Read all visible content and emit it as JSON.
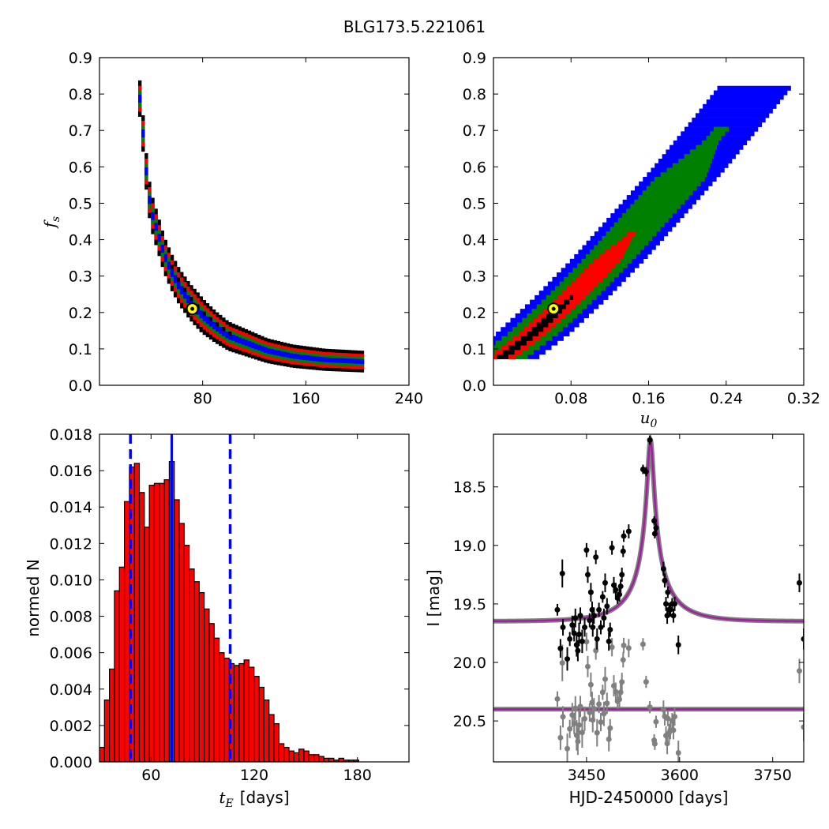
{
  "figure_title": "BLG173.5.221061",
  "chart_data": [
    {
      "id": "fs-vs-tE",
      "type": "heatmap",
      "xlabel": "",
      "ylabel": "f_s",
      "ylabel_main": "f",
      "ylabel_sub": "s",
      "xlim": [
        0,
        240
      ],
      "ylim": [
        0.0,
        0.9
      ],
      "xticks": [
        80,
        160,
        240
      ],
      "xtick_labels": [
        "80",
        "160",
        "240"
      ],
      "yticks": [
        0.0,
        0.1,
        0.2,
        0.3,
        0.4,
        0.5,
        0.6,
        0.7,
        0.8,
        0.9
      ],
      "ytick_labels": [
        "0.0",
        "0.1",
        "0.2",
        "0.3",
        "0.4",
        "0.5",
        "0.6",
        "0.7",
        "0.8",
        "0.9"
      ],
      "levels": [
        "black",
        "red",
        "green",
        "blue"
      ],
      "level_colors": [
        "#000000",
        "#ff0000",
        "#008000",
        "#0000ff"
      ],
      "ridge": [
        [
          30,
          0.85
        ],
        [
          32,
          0.75
        ],
        [
          35,
          0.65
        ],
        [
          37,
          0.55
        ],
        [
          40,
          0.48
        ],
        [
          45,
          0.42
        ],
        [
          50,
          0.36
        ],
        [
          56,
          0.31
        ],
        [
          62,
          0.27
        ],
        [
          70,
          0.23
        ],
        [
          80,
          0.19
        ],
        [
          90,
          0.16
        ],
        [
          100,
          0.135
        ],
        [
          115,
          0.115
        ],
        [
          130,
          0.095
        ],
        [
          150,
          0.08
        ],
        [
          175,
          0.07
        ],
        [
          205,
          0.065
        ]
      ],
      "band_width": [
        0.022,
        0.045,
        0.07,
        0.1
      ],
      "best_fit": [
        72,
        0.21
      ],
      "best_fit_color": "#ffff00"
    },
    {
      "id": "fs-vs-u0",
      "type": "heatmap",
      "xlabel": "u_0",
      "xlabel_main": "u",
      "xlabel_sub": "0",
      "ylabel": "",
      "xlim": [
        0,
        0.32
      ],
      "ylim": [
        0.0,
        0.9
      ],
      "xticks": [
        0.08,
        0.16,
        0.24,
        0.32
      ],
      "xtick_labels": [
        "0.08",
        "0.16",
        "0.24",
        "0.32"
      ],
      "yticks": [
        0.0,
        0.1,
        0.2,
        0.3,
        0.4,
        0.5,
        0.6,
        0.7,
        0.8,
        0.9
      ],
      "ytick_labels": [
        "0.0",
        "0.1",
        "0.2",
        "0.3",
        "0.4",
        "0.5",
        "0.6",
        "0.7",
        "0.8",
        "0.9"
      ],
      "levels": [
        "black",
        "red",
        "green",
        "blue"
      ],
      "level_colors": [
        "#000000",
        "#ff0000",
        "#008000",
        "#0000ff"
      ],
      "ridge": [
        [
          0.005,
          0.07
        ],
        [
          0.04,
          0.14
        ],
        [
          0.08,
          0.24
        ],
        [
          0.12,
          0.35
        ],
        [
          0.16,
          0.47
        ],
        [
          0.2,
          0.59
        ],
        [
          0.24,
          0.72
        ],
        [
          0.27,
          0.82
        ]
      ],
      "band_halfwidth_u0": [
        0.006,
        0.014,
        0.026,
        0.038
      ],
      "best_fit": [
        0.062,
        0.21
      ],
      "best_fit_color": "#ffff00"
    },
    {
      "id": "tE-histogram",
      "type": "bar",
      "xlabel": "t_E",
      "xlabel_main": "t",
      "xlabel_sub": "E",
      "xlabel_unit": "[days]",
      "ylabel": "normed N",
      "xlim": [
        30,
        210
      ],
      "ylim": [
        0.0,
        0.018
      ],
      "xticks": [
        60,
        120,
        180
      ],
      "xtick_labels": [
        "60",
        "120",
        "180"
      ],
      "yticks": [
        0.0,
        0.002,
        0.004,
        0.006,
        0.008,
        0.01,
        0.012,
        0.014,
        0.016,
        0.018
      ],
      "ytick_labels": [
        "0.000",
        "0.002",
        "0.004",
        "0.006",
        "0.008",
        "0.010",
        "0.012",
        "0.014",
        "0.016",
        "0.018"
      ],
      "bin_start": 30,
      "bin_width": 2.9,
      "values": [
        0.0008,
        0.0034,
        0.0051,
        0.0094,
        0.0107,
        0.0143,
        0.0162,
        0.0164,
        0.0148,
        0.0129,
        0.0152,
        0.0153,
        0.0153,
        0.0155,
        0.0165,
        0.0144,
        0.0131,
        0.0119,
        0.0106,
        0.0099,
        0.0093,
        0.0084,
        0.0076,
        0.0068,
        0.006,
        0.0057,
        0.0054,
        0.0053,
        0.0054,
        0.0056,
        0.0052,
        0.0047,
        0.0041,
        0.0034,
        0.0026,
        0.0021,
        0.001,
        0.0008,
        0.0006,
        0.0005,
        0.0007,
        0.0006,
        0.0004,
        0.0004,
        0.0003,
        0.0002,
        0.0002,
        0.0001,
        0.0002,
        0.0001,
        0.0001,
        0.0001
      ],
      "bar_color": "#ff0000",
      "median": 72,
      "interval": [
        48,
        106
      ],
      "line_color": "#0000ff"
    },
    {
      "id": "light-curve",
      "type": "scatter",
      "xlabel": "HJD-2450000 [days]",
      "ylabel": "I [mag]",
      "xlim": [
        3300,
        3800
      ],
      "ylim": [
        20.85,
        18.05
      ],
      "y_inverted": true,
      "xticks": [
        3450,
        3600,
        3750
      ],
      "xtick_labels": [
        "3450",
        "3600",
        "3750"
      ],
      "yticks": [
        18.5,
        19.0,
        19.5,
        20.0,
        20.5
      ],
      "ytick_labels": [
        "18.5",
        "19.0",
        "19.5",
        "20.0",
        "20.5"
      ],
      "model": {
        "t0": 3553,
        "tE": 72,
        "u0": 0.062,
        "fs": 0.21,
        "baseline": 19.65,
        "color": "#a020a0"
      },
      "residual_baseline": 20.4,
      "residual_model_color": "#a020a0",
      "data_points": [
        [
          3403,
          19.55,
          0.05
        ],
        [
          3408,
          19.88,
          0.08
        ],
        [
          3411,
          19.24,
          0.12
        ],
        [
          3412,
          19.7,
          0.07
        ],
        [
          3419,
          19.97,
          0.1
        ],
        [
          3423,
          19.8,
          0.06
        ],
        [
          3427,
          19.68,
          0.08
        ],
        [
          3430,
          19.75,
          0.07
        ],
        [
          3432,
          19.62,
          0.08
        ],
        [
          3434,
          19.85,
          0.1
        ],
        [
          3436,
          19.9,
          0.09
        ],
        [
          3438,
          19.76,
          0.1
        ],
        [
          3440,
          19.6,
          0.07
        ],
        [
          3443,
          19.82,
          0.1
        ],
        [
          3447,
          19.7,
          0.08
        ],
        [
          3450,
          19.04,
          0.06
        ],
        [
          3452,
          19.25,
          0.07
        ],
        [
          3455,
          19.64,
          0.06
        ],
        [
          3457,
          19.4,
          0.08
        ],
        [
          3459,
          19.55,
          0.07
        ],
        [
          3460,
          19.7,
          0.08
        ],
        [
          3462,
          19.6,
          0.07
        ],
        [
          3465,
          19.1,
          0.06
        ],
        [
          3467,
          19.8,
          0.09
        ],
        [
          3470,
          19.55,
          0.06
        ],
        [
          3473,
          19.7,
          0.06
        ],
        [
          3476,
          19.44,
          0.05
        ],
        [
          3478,
          19.62,
          0.08
        ],
        [
          3480,
          19.32,
          0.08
        ],
        [
          3483,
          19.52,
          0.07
        ],
        [
          3486,
          19.82,
          0.08
        ],
        [
          3488,
          19.72,
          0.06
        ],
        [
          3491,
          19.02,
          0.06
        ],
        [
          3494,
          19.34,
          0.07
        ],
        [
          3497,
          19.38,
          0.06
        ],
        [
          3500,
          19.45,
          0.05
        ],
        [
          3503,
          19.42,
          0.06
        ],
        [
          3505,
          19.35,
          0.06
        ],
        [
          3507,
          19.25,
          0.06
        ],
        [
          3509,
          19.05,
          0.05
        ],
        [
          3510,
          18.92,
          0.05
        ],
        [
          3518,
          18.88,
          0.06
        ],
        [
          3541,
          18.35,
          0.04
        ],
        [
          3546,
          18.37,
          0.04
        ],
        [
          3552,
          18.1,
          0.04
        ],
        [
          3559,
          18.79,
          0.04
        ],
        [
          3560,
          18.9,
          0.04
        ],
        [
          3562,
          18.85,
          0.04
        ],
        [
          3574,
          19.2,
          0.06
        ],
        [
          3576,
          19.3,
          0.06
        ],
        [
          3578,
          19.5,
          0.06
        ],
        [
          3580,
          19.6,
          0.07
        ],
        [
          3581,
          19.4,
          0.05
        ],
        [
          3583,
          19.55,
          0.06
        ],
        [
          3585,
          19.55,
          0.06
        ],
        [
          3588,
          19.5,
          0.05
        ],
        [
          3590,
          19.6,
          0.06
        ],
        [
          3592,
          19.5,
          0.06
        ],
        [
          3598,
          19.85,
          0.08
        ],
        [
          3793,
          19.32,
          0.08
        ],
        [
          3800,
          19.8,
          0.09
        ]
      ],
      "data_color": "#000000",
      "residual_color": "#808080"
    }
  ]
}
